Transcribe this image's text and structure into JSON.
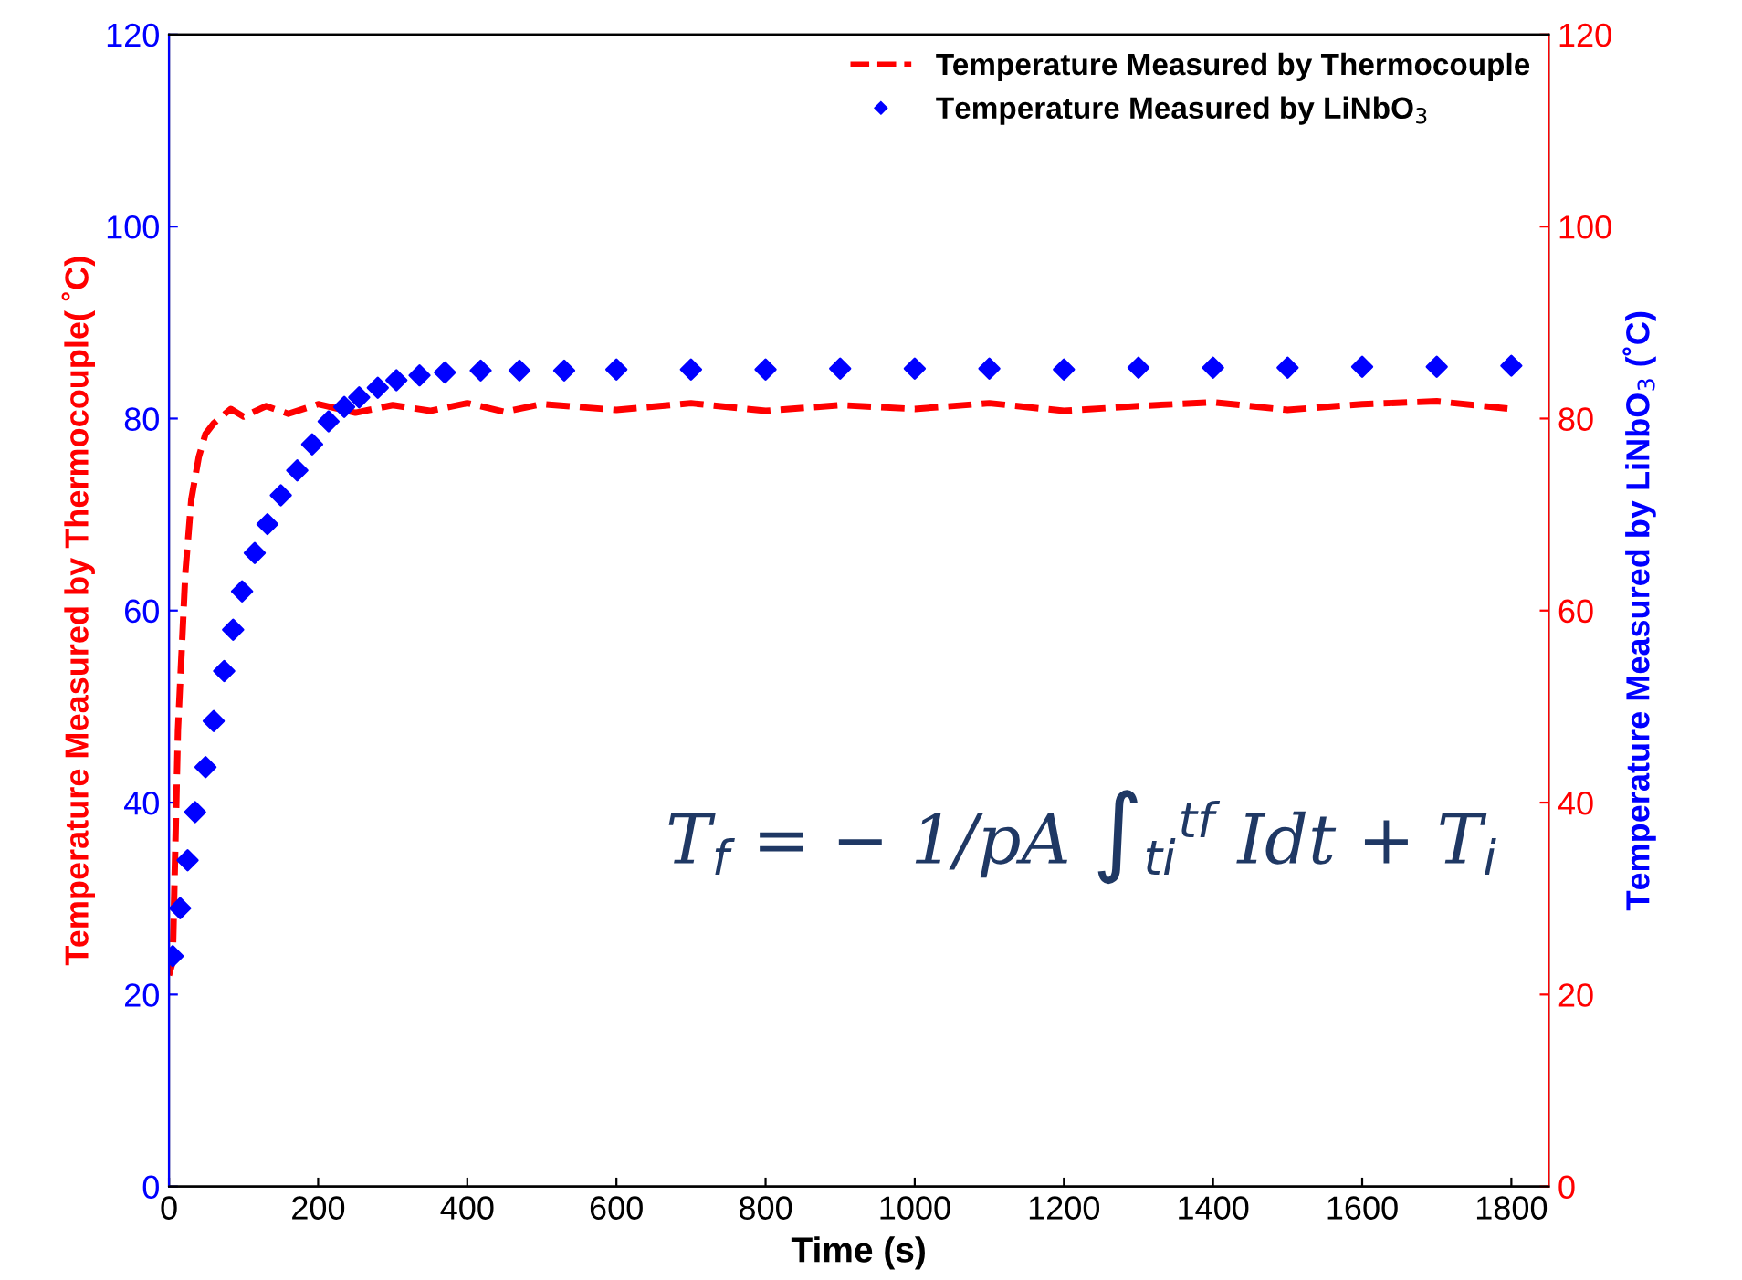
{
  "chart_data": {
    "type": "line",
    "xlabel": "Time (s)",
    "ylabel": "Temperature Measured by Thermocouple( ˚C)",
    "y2label": "Temperature Measured by LiNbO$_{3}$ (˚C)",
    "xlim": [
      0,
      1850
    ],
    "xticks": [
      0,
      200,
      400,
      600,
      800,
      1000,
      1200,
      1400,
      1600,
      1800
    ],
    "ylim": [
      0,
      120
    ],
    "yticks": [
      0,
      20,
      40,
      60,
      80,
      100,
      120
    ],
    "y2lim": [
      0,
      120
    ],
    "y2ticks": [
      0,
      20,
      40,
      60,
      80,
      100,
      120
    ],
    "grid": false,
    "legend": "top right",
    "annotations": [
      "T$_{f}$ = − 1/pA ∫$_{ti}$$^{tf}$ Idt + T$_{i}$"
    ],
    "series": [
      {
        "name": "Temperature Measured by Thermocouple",
        "line_style": "dashed",
        "marker": "none",
        "color": "#ff0000",
        "axis": "y",
        "x": [
          0,
          5,
          12,
          22,
          30,
          40,
          49,
          60,
          83,
          100,
          130,
          160,
          200,
          250,
          300,
          350,
          400,
          450,
          500,
          600,
          700,
          800,
          900,
          1000,
          1100,
          1200,
          1300,
          1400,
          1500,
          1600,
          1700,
          1800
        ],
        "values": [
          22,
          23.4,
          47.5,
          64,
          71.6,
          76,
          78.4,
          79.5,
          81,
          80.2,
          81.3,
          80.5,
          81.5,
          80.6,
          81.4,
          80.8,
          81.6,
          80.7,
          81.5,
          80.9,
          81.6,
          80.8,
          81.4,
          81,
          81.6,
          80.8,
          81.3,
          81.7,
          80.9,
          81.5,
          81.8,
          81
        ]
      },
      {
        "name": "Temperature Measured by LiNbO$_{3}$",
        "type": "scatter",
        "marker": "diamond",
        "color": "#0000ff",
        "axis": "y2",
        "x": [
          5,
          15,
          25,
          35,
          49,
          60,
          74,
          86,
          98,
          115,
          132,
          150,
          172,
          192,
          214,
          235,
          255,
          280,
          305,
          336,
          370,
          418,
          470,
          530,
          600,
          700,
          800,
          900,
          1000,
          1100,
          1200,
          1300,
          1400,
          1500,
          1600,
          1700,
          1800
        ],
        "values": [
          24,
          29,
          34,
          39,
          43.7,
          48.5,
          53.7,
          58,
          62,
          66,
          69,
          72,
          74.6,
          77.3,
          79.7,
          81.2,
          82.2,
          83.2,
          84,
          84.5,
          84.8,
          85,
          85,
          85,
          85.1,
          85.1,
          85.1,
          85.2,
          85.2,
          85.2,
          85.1,
          85.3,
          85.3,
          85.3,
          85.4,
          85.4,
          85.5
        ]
      }
    ]
  }
}
